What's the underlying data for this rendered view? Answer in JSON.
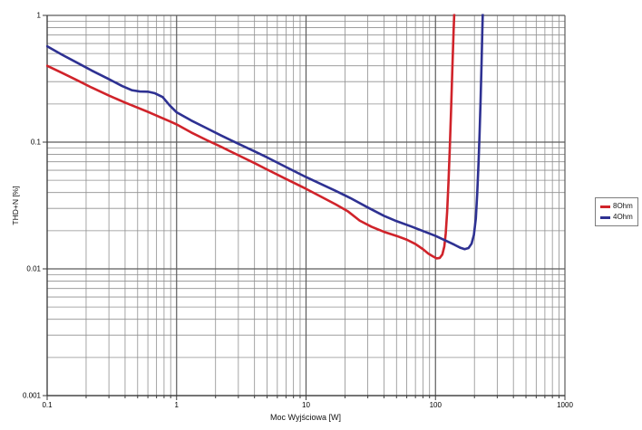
{
  "chart_data": {
    "type": "line",
    "title": "",
    "xlabel": "Moc Wyjściowa [W]",
    "ylabel": "THD+N [%]",
    "x_scale": "log",
    "y_scale": "log",
    "xlim": [
      0.1,
      1000
    ],
    "ylim": [
      0.001,
      1
    ],
    "x_ticks": [
      {
        "v": 0.1,
        "label": "0.1"
      },
      {
        "v": 1,
        "label": "1"
      },
      {
        "v": 10,
        "label": "10"
      },
      {
        "v": 100,
        "label": "100"
      },
      {
        "v": 1000,
        "label": "1000"
      }
    ],
    "y_ticks": [
      {
        "v": 1,
        "label": "1"
      },
      {
        "v": 0.1,
        "label": "0.1"
      },
      {
        "v": 0.01,
        "label": "0.01"
      },
      {
        "v": 0.001,
        "label": "0.001"
      }
    ],
    "grid": {
      "major": true,
      "minor": true
    },
    "legend": {
      "position": "outside-right"
    },
    "series": [
      {
        "name": "8Ohm",
        "color": "#d0232a",
        "points": [
          [
            0.1,
            0.4
          ],
          [
            0.13,
            0.352
          ],
          [
            0.17,
            0.308
          ],
          [
            0.22,
            0.27
          ],
          [
            0.3,
            0.233
          ],
          [
            0.4,
            0.205
          ],
          [
            0.5,
            0.187
          ],
          [
            0.62,
            0.171
          ],
          [
            0.75,
            0.157
          ],
          [
            0.9,
            0.145
          ],
          [
            1,
            0.138
          ],
          [
            1.3,
            0.119
          ],
          [
            1.7,
            0.104
          ],
          [
            2.2,
            0.092
          ],
          [
            3,
            0.0788
          ],
          [
            4,
            0.0683
          ],
          [
            5,
            0.0608
          ],
          [
            7,
            0.0512
          ],
          [
            10,
            0.0428
          ],
          [
            13,
            0.0372
          ],
          [
            17,
            0.0322
          ],
          [
            21,
            0.0285
          ],
          [
            26,
            0.024
          ],
          [
            32,
            0.0215
          ],
          [
            40,
            0.0196
          ],
          [
            50,
            0.0182
          ],
          [
            60,
            0.017
          ],
          [
            70,
            0.0157
          ],
          [
            80,
            0.0143
          ],
          [
            88,
            0.0132
          ],
          [
            95,
            0.0126
          ],
          [
            102,
            0.0121
          ],
          [
            108,
            0.0122
          ],
          [
            113,
            0.013
          ],
          [
            117,
            0.015
          ],
          [
            120,
            0.019
          ],
          [
            123,
            0.028
          ],
          [
            126,
            0.048
          ],
          [
            129,
            0.09
          ],
          [
            132,
            0.18
          ],
          [
            135,
            0.38
          ],
          [
            138,
            0.75
          ],
          [
            140,
            1.1
          ],
          [
            141,
            1.3
          ]
        ]
      },
      {
        "name": "4Ohm",
        "color": "#2e3192",
        "points": [
          [
            0.1,
            0.57
          ],
          [
            0.13,
            0.49
          ],
          [
            0.17,
            0.424
          ],
          [
            0.22,
            0.368
          ],
          [
            0.3,
            0.314
          ],
          [
            0.38,
            0.277
          ],
          [
            0.45,
            0.257
          ],
          [
            0.52,
            0.251
          ],
          [
            0.6,
            0.25
          ],
          [
            0.68,
            0.243
          ],
          [
            0.78,
            0.227
          ],
          [
            0.88,
            0.196
          ],
          [
            1,
            0.172
          ],
          [
            1.3,
            0.148
          ],
          [
            1.7,
            0.129
          ],
          [
            2.2,
            0.113
          ],
          [
            3,
            0.097
          ],
          [
            4,
            0.0846
          ],
          [
            5,
            0.0758
          ],
          [
            7,
            0.0636
          ],
          [
            10,
            0.053
          ],
          [
            13,
            0.0468
          ],
          [
            17,
            0.0412
          ],
          [
            22,
            0.0362
          ],
          [
            30,
            0.0305
          ],
          [
            40,
            0.0262
          ],
          [
            50,
            0.0238
          ],
          [
            65,
            0.0216
          ],
          [
            80,
            0.0199
          ],
          [
            100,
            0.0182
          ],
          [
            120,
            0.0167
          ],
          [
            140,
            0.0155
          ],
          [
            155,
            0.0147
          ],
          [
            168,
            0.0143
          ],
          [
            180,
            0.0146
          ],
          [
            190,
            0.0158
          ],
          [
            198,
            0.0185
          ],
          [
            205,
            0.025
          ],
          [
            210,
            0.039
          ],
          [
            215,
            0.068
          ],
          [
            219,
            0.115
          ],
          [
            223,
            0.21
          ],
          [
            227,
            0.42
          ],
          [
            230,
            0.75
          ],
          [
            232,
            1.05
          ],
          [
            233,
            1.3
          ]
        ]
      }
    ]
  },
  "colors": {
    "grid_minor": "#8f8f8f",
    "grid_major": "#5c5c5c",
    "axis": "#3a3a3a",
    "tick_label": "#000000",
    "background": "#ffffff"
  }
}
